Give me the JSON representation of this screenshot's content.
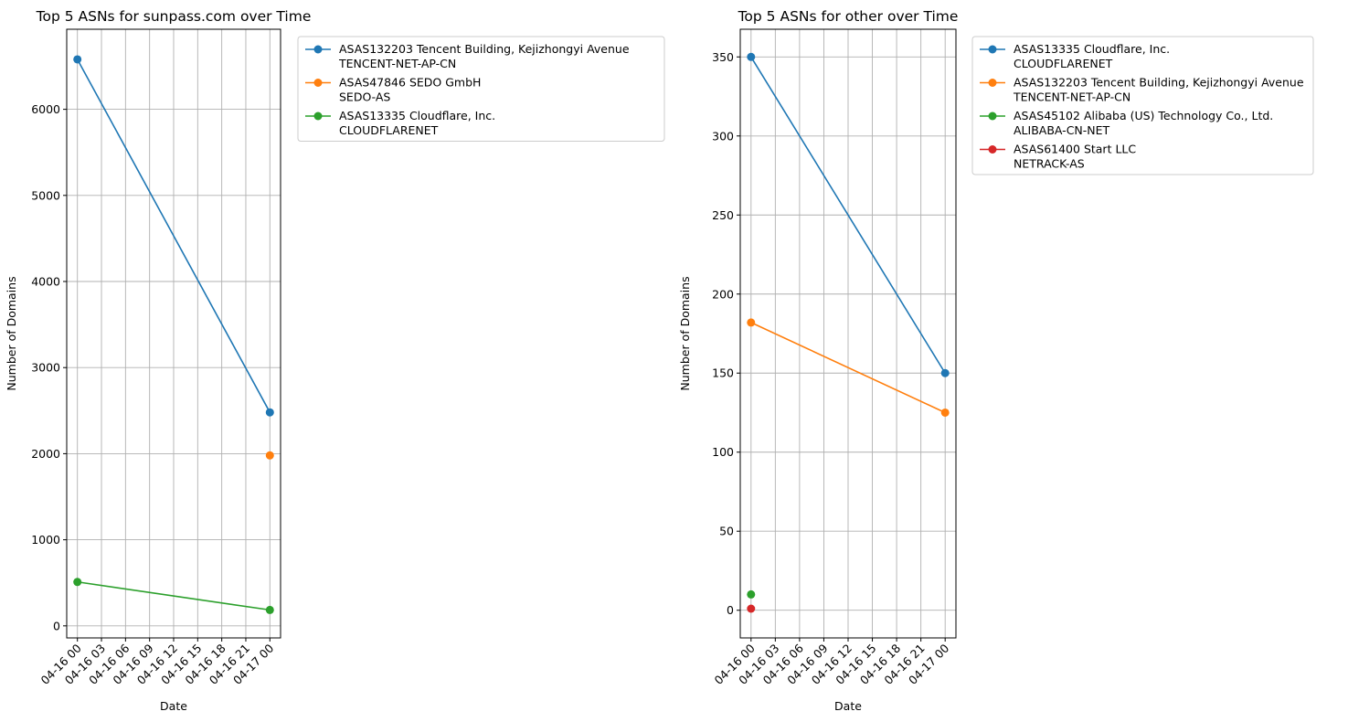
{
  "chart_data": [
    {
      "type": "line",
      "title": "Top 5 ASNs for sunpass.com over Time",
      "xlabel": "Date",
      "ylabel": "Number of Domains",
      "x_tick_labels": [
        "04-16 00",
        "04-16 03",
        "04-16 06",
        "04-16 09",
        "04-16 12",
        "04-16 15",
        "04-16 18",
        "04-16 21",
        "04-17 00"
      ],
      "y_ticks": [
        0,
        1000,
        2000,
        3000,
        4000,
        5000,
        6000
      ],
      "ylim": [
        -140,
        6930
      ],
      "grid": true,
      "legend_position": "outside-right",
      "series": [
        {
          "name": "ASAS132203 Tencent Building, Kejizhongyi Avenue\nTENCENT-NET-AP-CN",
          "color": "#1f77b4",
          "points": [
            {
              "x": "04-16 00",
              "y": 6580
            },
            {
              "x": "04-17 00",
              "y": 2480
            }
          ]
        },
        {
          "name": "ASAS47846 SEDO GmbH\nSEDO-AS",
          "color": "#ff7f0e",
          "points": [
            {
              "x": "04-17 00",
              "y": 1980
            }
          ]
        },
        {
          "name": "ASAS13335 Cloudflare, Inc.\nCLOUDFLARENET",
          "color": "#2ca02c",
          "points": [
            {
              "x": "04-16 00",
              "y": 510
            },
            {
              "x": "04-17 00",
              "y": 185
            }
          ]
        }
      ]
    },
    {
      "type": "line",
      "title": "Top 5 ASNs for other over Time",
      "xlabel": "Date",
      "ylabel": "Number of Domains",
      "x_tick_labels": [
        "04-16 00",
        "04-16 03",
        "04-16 06",
        "04-16 09",
        "04-16 12",
        "04-16 15",
        "04-16 18",
        "04-16 21",
        "04-17 00"
      ],
      "y_ticks": [
        0,
        50,
        100,
        150,
        200,
        250,
        300,
        350
      ],
      "ylim": [
        -17.5,
        367.5
      ],
      "grid": true,
      "legend_position": "outside-right",
      "series": [
        {
          "name": "ASAS13335 Cloudflare, Inc.\nCLOUDFLARENET",
          "color": "#1f77b4",
          "points": [
            {
              "x": "04-16 00",
              "y": 350
            },
            {
              "x": "04-17 00",
              "y": 150
            }
          ]
        },
        {
          "name": "ASAS132203 Tencent Building, Kejizhongyi Avenue\nTENCENT-NET-AP-CN",
          "color": "#ff7f0e",
          "points": [
            {
              "x": "04-16 00",
              "y": 182
            },
            {
              "x": "04-17 00",
              "y": 125
            }
          ]
        },
        {
          "name": "ASAS45102 Alibaba (US) Technology Co., Ltd.\nALIBABA-CN-NET",
          "color": "#2ca02c",
          "points": [
            {
              "x": "04-16 00",
              "y": 10
            }
          ]
        },
        {
          "name": "ASAS61400 Start LLC\nNETRACK-AS",
          "color": "#d62728",
          "points": [
            {
              "x": "04-16 00",
              "y": 1
            }
          ]
        }
      ]
    }
  ]
}
